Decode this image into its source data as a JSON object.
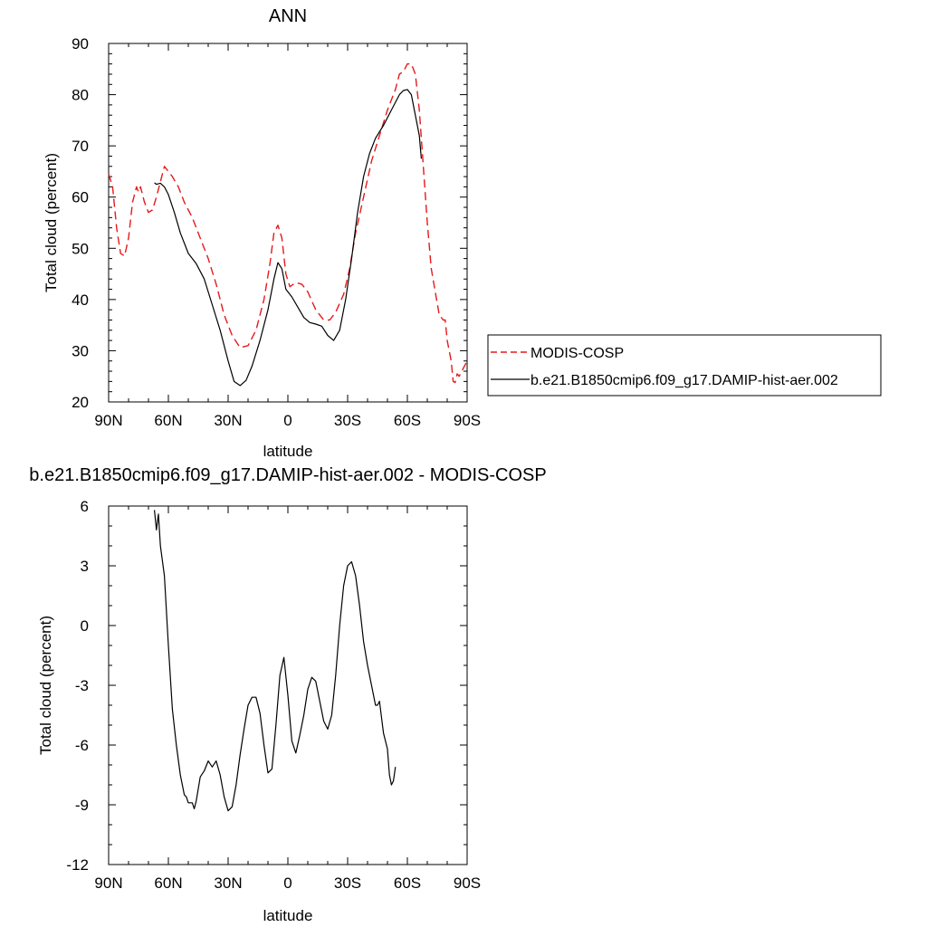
{
  "chart_data": [
    {
      "type": "line",
      "title": "ANN",
      "xlabel": "latitude",
      "ylabel": "Total cloud (percent)",
      "xlim": [
        -90,
        90
      ],
      "ylim": [
        20,
        90
      ],
      "x_ticks": [
        -90,
        -60,
        -30,
        0,
        30,
        60,
        90
      ],
      "x_tick_labels": [
        "90N",
        "60N",
        "30N",
        "0",
        "30S",
        "60S",
        "90S"
      ],
      "y_ticks": [
        20,
        30,
        40,
        50,
        60,
        70,
        80,
        90
      ],
      "y_tick_labels": [
        "20",
        "30",
        "40",
        "50",
        "60",
        "70",
        "80",
        "90"
      ],
      "grid": false,
      "legend_placement": "right",
      "series": [
        {
          "name": "MODIS-COSP",
          "color": "#e41a1c",
          "dash": "dashed",
          "points": [
            [
              -90,
              64.5
            ],
            [
              -88,
              62
            ],
            [
              -86,
              54
            ],
            [
              -84,
              49
            ],
            [
              -82,
              48.5
            ],
            [
              -80,
              52
            ],
            [
              -78,
              59
            ],
            [
              -76,
              62
            ],
            [
              -75,
              61
            ],
            [
              -74,
              62
            ],
            [
              -72,
              59
            ],
            [
              -70,
              57
            ],
            [
              -68,
              57.5
            ],
            [
              -66,
              60
            ],
            [
              -64,
              63
            ],
            [
              -62,
              66
            ],
            [
              -60,
              65
            ],
            [
              -58,
              64
            ],
            [
              -55,
              62
            ],
            [
              -52,
              59
            ],
            [
              -48,
              56
            ],
            [
              -44,
              52
            ],
            [
              -40,
              48
            ],
            [
              -36,
              43
            ],
            [
              -32,
              37
            ],
            [
              -28,
              33
            ],
            [
              -24,
              30.6
            ],
            [
              -20,
              31
            ],
            [
              -16,
              34
            ],
            [
              -12,
              40
            ],
            [
              -9,
              47
            ],
            [
              -7,
              53
            ],
            [
              -5,
              54.5
            ],
            [
              -3,
              52
            ],
            [
              -1,
              45
            ],
            [
              1,
              42.5
            ],
            [
              4,
              43.3
            ],
            [
              7,
              43
            ],
            [
              10,
              41.5
            ],
            [
              14,
              38
            ],
            [
              18,
              36
            ],
            [
              21,
              36
            ],
            [
              24,
              37.5
            ],
            [
              28,
              41
            ],
            [
              31,
              46
            ],
            [
              34,
              53
            ],
            [
              38,
              60
            ],
            [
              42,
              67
            ],
            [
              46,
              72
            ],
            [
              50,
              77
            ],
            [
              54,
              81
            ],
            [
              56,
              84
            ],
            [
              58,
              84.5
            ],
            [
              60,
              86
            ],
            [
              62,
              86
            ],
            [
              64,
              84
            ],
            [
              66,
              77
            ],
            [
              68,
              66
            ],
            [
              70,
              55
            ],
            [
              72,
              46
            ],
            [
              74,
              41.5
            ],
            [
              76,
              37
            ],
            [
              78,
              36
            ],
            [
              79,
              36
            ],
            [
              80,
              32
            ],
            [
              82,
              28
            ],
            [
              83,
              24
            ],
            [
              84,
              23.8
            ],
            [
              85,
              25.5
            ],
            [
              86,
              25
            ],
            [
              88,
              26.5
            ],
            [
              90,
              28
            ]
          ]
        },
        {
          "name": "b.e21.B1850cmip6.f09_g17.DAMIP-hist-aer.002",
          "color": "#000000",
          "dash": "solid",
          "points": [
            [
              -67,
              62.8
            ],
            [
              -66,
              62.5
            ],
            [
              -64,
              62.7
            ],
            [
              -62,
              62
            ],
            [
              -60,
              60.5
            ],
            [
              -57,
              57
            ],
            [
              -54,
              53
            ],
            [
              -50,
              49
            ],
            [
              -46,
              47
            ],
            [
              -42,
              44
            ],
            [
              -38,
              39
            ],
            [
              -34,
              34
            ],
            [
              -30,
              28
            ],
            [
              -27,
              24
            ],
            [
              -24,
              23.2
            ],
            [
              -21,
              24.2
            ],
            [
              -18,
              27
            ],
            [
              -14,
              32
            ],
            [
              -10,
              38
            ],
            [
              -7,
              44
            ],
            [
              -5,
              47.2
            ],
            [
              -3,
              46
            ],
            [
              -1,
              42
            ],
            [
              2,
              40.5
            ],
            [
              5,
              38.5
            ],
            [
              8,
              36.5
            ],
            [
              11,
              35.5
            ],
            [
              14,
              35.2
            ],
            [
              17,
              34.8
            ],
            [
              20,
              33
            ],
            [
              23,
              32
            ],
            [
              26,
              34
            ],
            [
              29,
              40
            ],
            [
              32,
              48
            ],
            [
              35,
              57
            ],
            [
              38,
              64
            ],
            [
              41,
              68.5
            ],
            [
              44,
              71.5
            ],
            [
              48,
              74
            ],
            [
              52,
              77
            ],
            [
              56,
              80
            ],
            [
              58,
              80.8
            ],
            [
              60,
              81
            ],
            [
              62,
              80
            ],
            [
              64,
              76
            ],
            [
              66,
              72
            ],
            [
              67,
              67.5
            ]
          ]
        }
      ]
    },
    {
      "type": "line",
      "title": "b.e21.B1850cmip6.f09_g17.DAMIP-hist-aer.002 - MODIS-COSP",
      "xlabel": "latitude",
      "ylabel": "Total cloud (percent)",
      "xlim": [
        -90,
        90
      ],
      "ylim": [
        -12,
        6
      ],
      "x_ticks": [
        -90,
        -60,
        -30,
        0,
        30,
        60,
        90
      ],
      "x_tick_labels": [
        "90N",
        "60N",
        "30N",
        "0",
        "30S",
        "60S",
        "90S"
      ],
      "y_ticks": [
        -12,
        -9,
        -6,
        -3,
        0,
        3,
        6
      ],
      "y_tick_labels": [
        "-12",
        "-9",
        "-6",
        "-3",
        "0",
        "3",
        "6"
      ],
      "grid": false,
      "series": [
        {
          "color": "#000000",
          "dash": "solid",
          "points": [
            [
              -67,
              5.8
            ],
            [
              -66,
              4.8
            ],
            [
              -65,
              5.6
            ],
            [
              -64,
              4
            ],
            [
              -62,
              2.5
            ],
            [
              -60,
              -1
            ],
            [
              -58,
              -4.2
            ],
            [
              -56,
              -6
            ],
            [
              -54,
              -7.5
            ],
            [
              -52,
              -8.5
            ],
            [
              -51,
              -8.6
            ],
            [
              -50,
              -8.9
            ],
            [
              -48,
              -8.9
            ],
            [
              -47,
              -9.2
            ],
            [
              -46,
              -8.8
            ],
            [
              -44,
              -7.6
            ],
            [
              -42,
              -7.3
            ],
            [
              -40,
              -6.8
            ],
            [
              -38,
              -7.1
            ],
            [
              -36,
              -6.8
            ],
            [
              -34,
              -7.5
            ],
            [
              -32,
              -8.6
            ],
            [
              -30,
              -9.3
            ],
            [
              -28,
              -9.1
            ],
            [
              -26,
              -8
            ],
            [
              -24,
              -6.5
            ],
            [
              -22,
              -5.2
            ],
            [
              -20,
              -4
            ],
            [
              -18,
              -3.6
            ],
            [
              -16,
              -3.6
            ],
            [
              -14,
              -4.4
            ],
            [
              -12,
              -6
            ],
            [
              -10,
              -7.4
            ],
            [
              -8,
              -7.2
            ],
            [
              -6,
              -5
            ],
            [
              -4,
              -2.5
            ],
            [
              -2,
              -1.6
            ],
            [
              0,
              -3.5
            ],
            [
              2,
              -5.8
            ],
            [
              4,
              -6.4
            ],
            [
              6,
              -5.5
            ],
            [
              8,
              -4.5
            ],
            [
              10,
              -3.2
            ],
            [
              12,
              -2.6
            ],
            [
              14,
              -2.8
            ],
            [
              16,
              -3.8
            ],
            [
              18,
              -4.8
            ],
            [
              20,
              -5.2
            ],
            [
              22,
              -4.5
            ],
            [
              24,
              -2.5
            ],
            [
              26,
              0
            ],
            [
              28,
              2
            ],
            [
              30,
              3
            ],
            [
              32,
              3.2
            ],
            [
              34,
              2.5
            ],
            [
              36,
              1
            ],
            [
              38,
              -0.8
            ],
            [
              40,
              -2
            ],
            [
              42,
              -3
            ],
            [
              44,
              -4
            ],
            [
              45,
              -4
            ],
            [
              46,
              -3.8
            ],
            [
              47,
              -4.6
            ],
            [
              48,
              -5.4
            ],
            [
              50,
              -6.2
            ],
            [
              51,
              -7.5
            ],
            [
              52,
              -8
            ],
            [
              53,
              -7.8
            ],
            [
              54,
              -7.1
            ]
          ]
        }
      ]
    }
  ]
}
